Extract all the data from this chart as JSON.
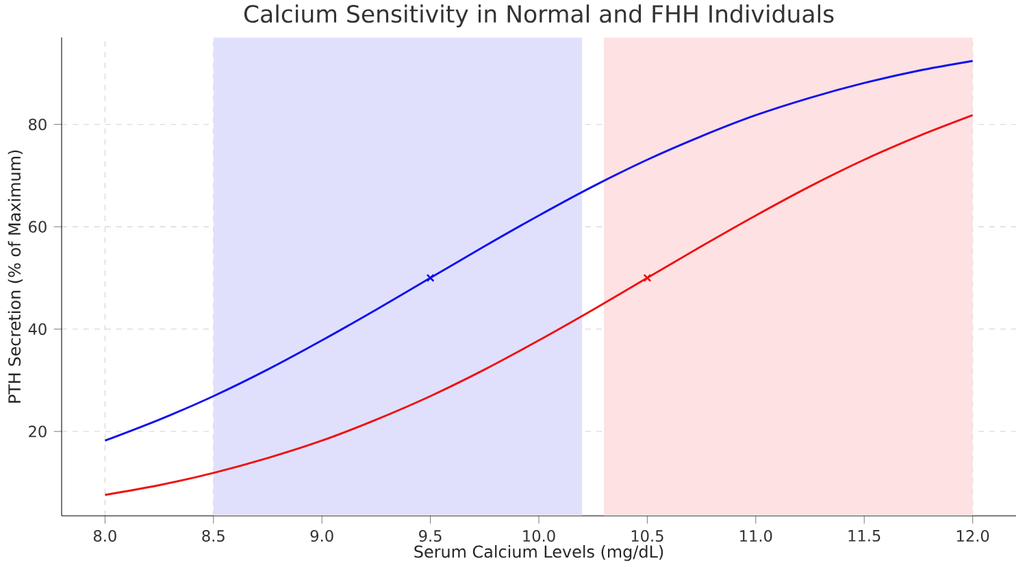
{
  "chart_data": {
    "type": "line",
    "title": "Calcium Sensitivity in Normal and FHH Individuals",
    "xlabel": "Serum Calcium Levels (mg/dL)",
    "ylabel": "PTH Secretion (% of Maximum)",
    "xlim": [
      7.8,
      12.2
    ],
    "ylim": [
      3.5,
      97
    ],
    "xticks": [
      {
        "value": 8,
        "label": "8.0"
      },
      {
        "value": 8.5,
        "label": "8.5"
      },
      {
        "value": 9,
        "label": "9.0"
      },
      {
        "value": 9.5,
        "label": "9.5"
      },
      {
        "value": 10,
        "label": "10.0"
      },
      {
        "value": 10.5,
        "label": "10.5"
      },
      {
        "value": 11,
        "label": "11.0"
      },
      {
        "value": 11.5,
        "label": "11.5"
      },
      {
        "value": 12,
        "label": "12.0"
      }
    ],
    "yticks": [
      20,
      40,
      60,
      80
    ],
    "grid": true,
    "line_style": "solid",
    "bands": [
      {
        "axis": "x",
        "from": 8.5,
        "to": 10.2,
        "color": "#e0e0fd"
      },
      {
        "axis": "x",
        "from": 10.3,
        "to": 12.0,
        "color": "#fde1e3"
      }
    ],
    "series": [
      {
        "color": "#1010ee",
        "x": [
          8.0,
          8.25,
          8.5,
          8.75,
          9.0,
          9.25,
          9.5,
          9.75,
          10.0,
          10.25,
          10.5,
          10.75,
          11.0,
          11.25,
          11.5,
          11.75,
          12.0
        ],
        "values": [
          18.2,
          22.3,
          26.9,
          32.1,
          37.8,
          43.8,
          50,
          56.2,
          62.2,
          67.9,
          73.1,
          77.7,
          81.8,
          85.2,
          88.1,
          90.5,
          92.4
        ]
      },
      {
        "color": "#ee1010",
        "x": [
          8.0,
          8.25,
          8.5,
          8.75,
          9.0,
          9.25,
          9.5,
          9.75,
          10.0,
          10.25,
          10.5,
          10.75,
          11.0,
          11.25,
          11.5,
          11.75,
          12.0
        ],
        "values": [
          7.6,
          9.5,
          11.9,
          14.8,
          18.2,
          22.3,
          26.9,
          32.1,
          37.8,
          43.8,
          50,
          56.2,
          62.2,
          67.9,
          73.1,
          77.7,
          81.8
        ]
      },
      {
        "type": "scatter",
        "marker": "cross",
        "color": "#1010ee",
        "x": [
          9.5
        ],
        "values": [
          50
        ]
      },
      {
        "type": "scatter",
        "marker": "cross",
        "color": "#ee1010",
        "x": [
          10.5
        ],
        "values": [
          50
        ]
      }
    ]
  }
}
